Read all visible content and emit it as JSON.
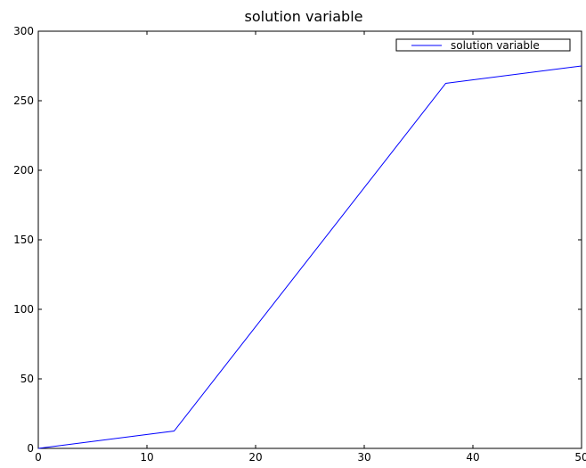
{
  "chart_data": {
    "type": "line",
    "title": "solution variable",
    "xlabel": "",
    "ylabel": "",
    "xlim": [
      0,
      50
    ],
    "ylim": [
      0,
      300
    ],
    "xticks": [
      0,
      10,
      20,
      30,
      40,
      50
    ],
    "yticks": [
      0,
      50,
      100,
      150,
      200,
      250,
      300
    ],
    "grid": false,
    "legend": {
      "position": "top-right"
    },
    "series": [
      {
        "name": "solution variable",
        "color": "#0000ff",
        "x": [
          0,
          12.5,
          37.5,
          50
        ],
        "y": [
          0,
          12.5,
          262.5,
          275
        ]
      }
    ]
  }
}
